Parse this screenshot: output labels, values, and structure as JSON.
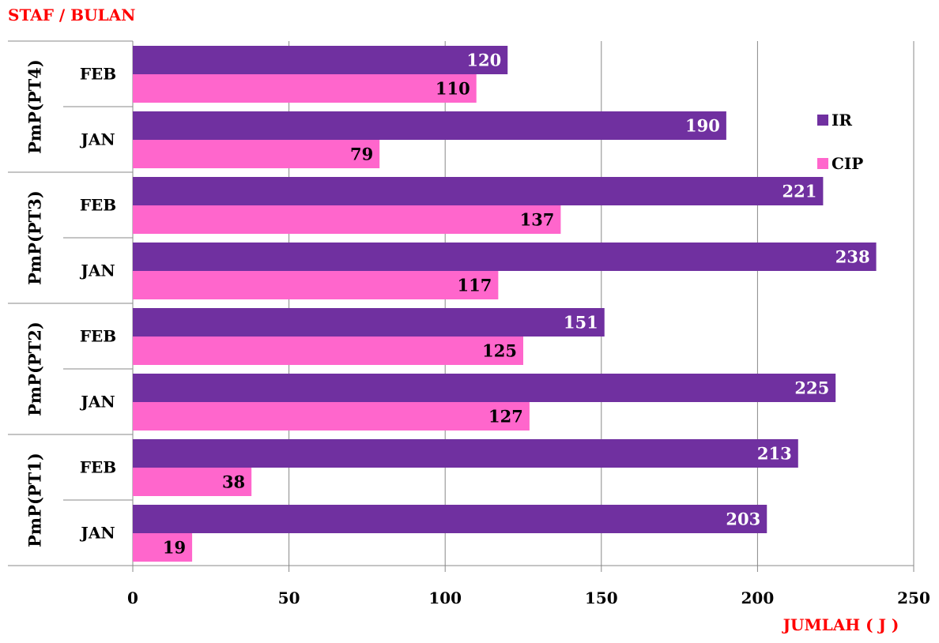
{
  "colors": {
    "ir": "#7030A0",
    "cip": "#FF66CC",
    "axis_title": "#FF0000",
    "grid": "#888888",
    "text": "#000000",
    "label_on_ir": "#FFFFFF",
    "label_on_cip": "#000000"
  },
  "chart_data": {
    "type": "bar",
    "orientation": "horizontal",
    "title": "",
    "ylabel": "STAF / BULAN",
    "xlabel": "JUMLAH ( J )",
    "xlim": [
      0,
      250
    ],
    "xticks": [
      0,
      50,
      100,
      150,
      200,
      250
    ],
    "grid": "vertical",
    "legend_position": "right",
    "groups": [
      {
        "label": "PmP(PT4)",
        "months": [
          {
            "label": "FEB",
            "IR": 120,
            "CIP": 110
          },
          {
            "label": "JAN",
            "IR": 190,
            "CIP": 79
          }
        ]
      },
      {
        "label": "PmP(PT3)",
        "months": [
          {
            "label": "FEB",
            "IR": 221,
            "CIP": 137
          },
          {
            "label": "JAN",
            "IR": 238,
            "CIP": 117
          }
        ]
      },
      {
        "label": "PmP(PT2)",
        "months": [
          {
            "label": "FEB",
            "IR": 151,
            "CIP": 125
          },
          {
            "label": "JAN",
            "IR": 225,
            "CIP": 127
          }
        ]
      },
      {
        "label": "PmP(PT1)",
        "months": [
          {
            "label": "FEB",
            "IR": 213,
            "CIP": 38
          },
          {
            "label": "JAN",
            "IR": 203,
            "CIP": 19
          }
        ]
      }
    ],
    "series": [
      {
        "name": "IR",
        "key": "IR",
        "color": "#7030A0"
      },
      {
        "name": "CIP",
        "key": "CIP",
        "color": "#FF66CC"
      }
    ]
  }
}
